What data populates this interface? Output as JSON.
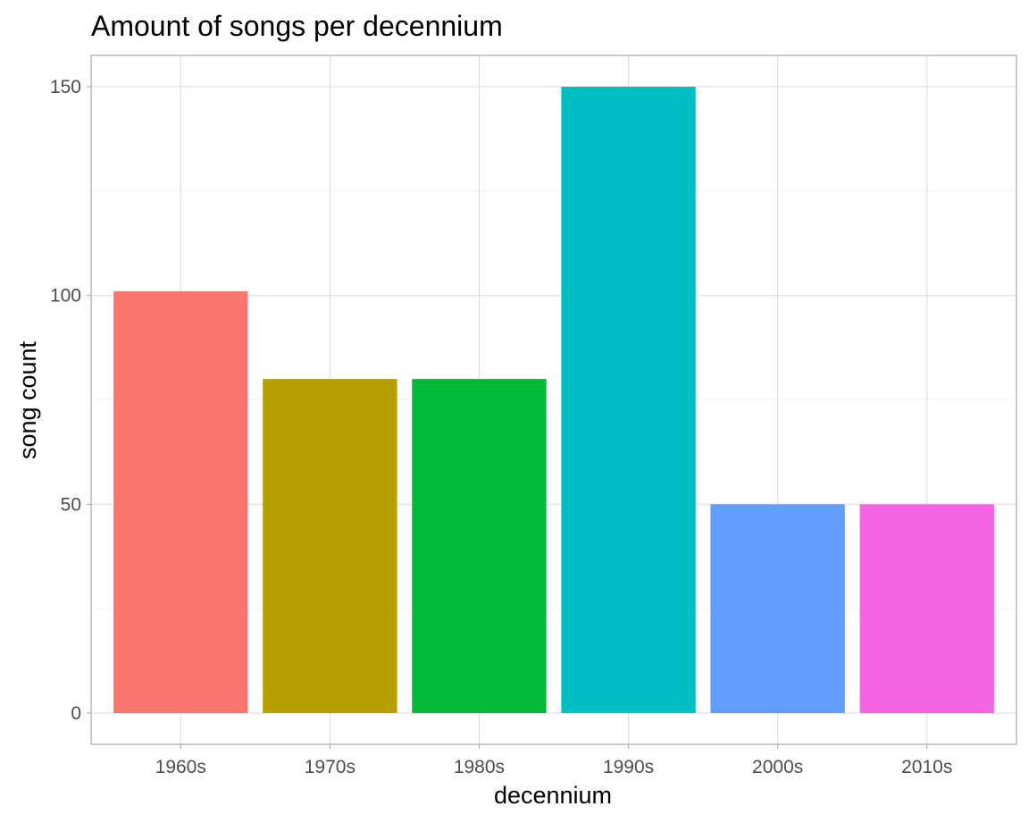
{
  "chart_data": {
    "type": "bar",
    "title": "Amount of songs per decennium",
    "xlabel": "decennium",
    "ylabel": "song count",
    "categories": [
      "1960s",
      "1970s",
      "1980s",
      "1990s",
      "2000s",
      "2010s"
    ],
    "values": [
      101,
      80,
      80,
      150,
      50,
      50
    ],
    "colors": [
      "#F8766D",
      "#B79F00",
      "#00BA38",
      "#00BFC4",
      "#619CFF",
      "#F564E3"
    ],
    "ylim": [
      -7.5,
      157.5
    ],
    "yticks": [
      0,
      50,
      100,
      150
    ],
    "yminor": [
      25,
      75,
      125
    ],
    "grid": true,
    "legend": "none"
  }
}
